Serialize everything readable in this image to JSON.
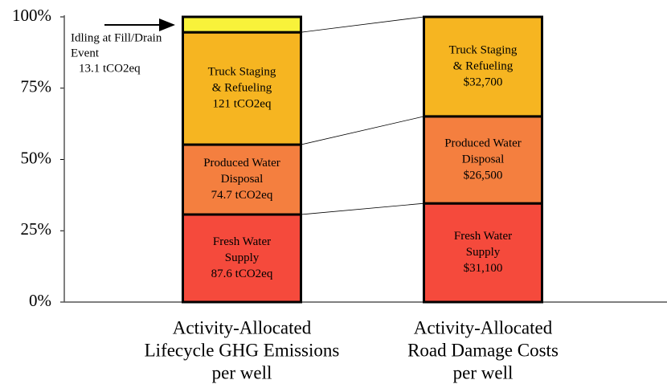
{
  "chart_data": {
    "type": "stacked_bar",
    "categories": [
      [
        "Activity-Allocated",
        "Lifecycle GHG Emissions",
        "per well"
      ],
      [
        "Activity-Allocated",
        "Road Damage Costs",
        "per well"
      ]
    ],
    "series": [
      {
        "name": "Fresh Water Supply",
        "color": "#f54a3c",
        "values": [
          30.7,
          34.6
        ],
        "labels": [
          [
            "Fresh Water",
            "Supply",
            "87.6 tCO2eq"
          ],
          [
            "Fresh Water",
            "Supply",
            "$31,100"
          ]
        ]
      },
      {
        "name": "Produced Water Disposal",
        "color": "#f47f3f",
        "values": [
          24.5,
          30.5
        ],
        "labels": [
          [
            "Produced Water",
            "Disposal",
            "74.7 tCO2eq"
          ],
          [
            "Produced Water",
            "Disposal",
            "$26,500"
          ]
        ]
      },
      {
        "name": "Truck Staging & Refueling",
        "color": "#f6b521",
        "values": [
          39.4,
          34.9
        ],
        "labels": [
          [
            "Truck Staging",
            "& Refueling",
            "121 tCO2eq"
          ],
          [
            "Truck Staging",
            "& Refueling",
            "$32,700"
          ]
        ]
      },
      {
        "name": "Idling at Fill/Drain Event",
        "color": "#f8f23a",
        "values": [
          5.4,
          null
        ],
        "labels": [
          [
            "Idling at Fill/Drain",
            "Event",
            "13.1 tCO2eq"
          ],
          null
        ]
      }
    ],
    "ylim": [
      0,
      100
    ],
    "yticks": [
      {
        "value": 0,
        "label": "0%"
      },
      {
        "value": 25,
        "label": "25%"
      },
      {
        "value": 50,
        "label": "50%"
      },
      {
        "value": 75,
        "label": "75%"
      },
      {
        "value": 100,
        "label": "100%"
      }
    ]
  }
}
